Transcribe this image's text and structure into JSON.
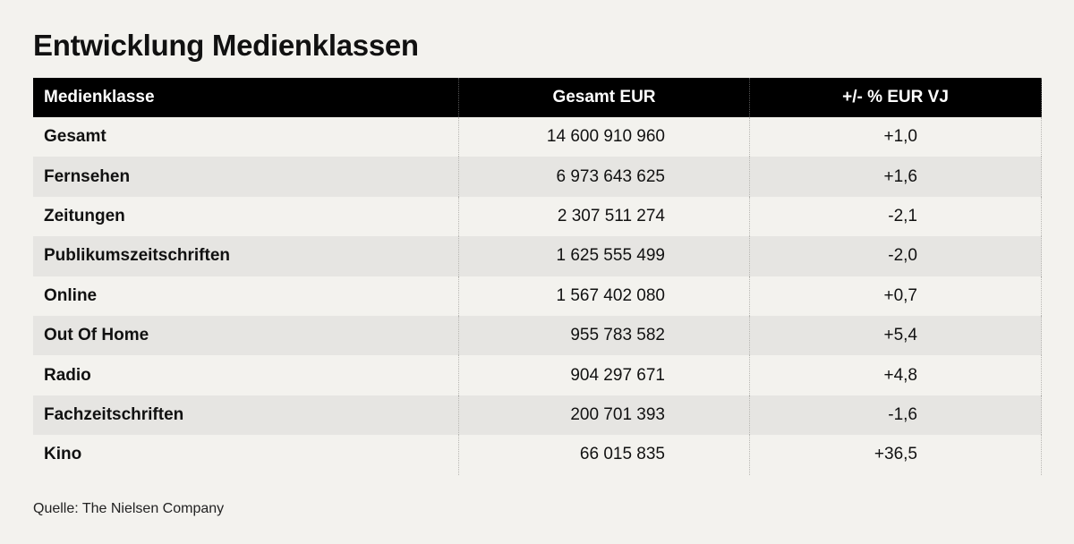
{
  "chart_data": {
    "type": "table",
    "title": "Entwicklung Medienklassen",
    "columns": [
      "Medienklasse",
      "Gesamt EUR",
      "+/- % EUR VJ"
    ],
    "rows": [
      [
        "Gesamt",
        "14 600 910 960",
        "+1,0"
      ],
      [
        "Fernsehen",
        "6 973 643 625",
        "+1,6"
      ],
      [
        "Zeitungen",
        "2 307 511 274",
        "-2,1"
      ],
      [
        "Publikumszeitschriften",
        "1 625 555 499",
        "-2,0"
      ],
      [
        "Online",
        "1 567 402 080",
        "+0,7"
      ],
      [
        "Out Of Home",
        "955 783 582",
        "+5,4"
      ],
      [
        "Radio",
        "904 297 671",
        "+4,8"
      ],
      [
        "Fachzeitschriften",
        "200 701 393",
        "-1,6"
      ],
      [
        "Kino",
        "66 015 835",
        "+36,5"
      ]
    ],
    "source": "Quelle: The Nielsen Company"
  },
  "colors": {
    "background": "#f3f2ee",
    "header_background": "#000000",
    "stripe": "#e6e5e2",
    "text": "#111111"
  }
}
